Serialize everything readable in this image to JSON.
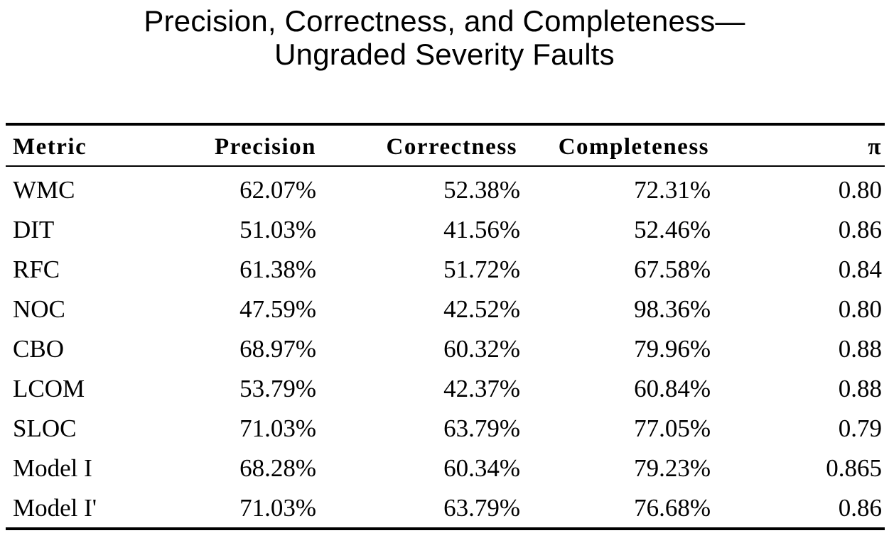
{
  "title": {
    "line1": "Precision, Correctness, and Completeness—",
    "line2": "Ungraded Severity Faults"
  },
  "table": {
    "headers": [
      "Metric",
      "Precision",
      "Correctness",
      "Completeness",
      "π"
    ],
    "rows": [
      [
        "WMC",
        "62.07%",
        "52.38%",
        "72.31%",
        "0.80"
      ],
      [
        "DIT",
        "51.03%",
        "41.56%",
        "52.46%",
        "0.86"
      ],
      [
        "RFC",
        "61.38%",
        "51.72%",
        "67.58%",
        "0.84"
      ],
      [
        "NOC",
        "47.59%",
        "42.52%",
        "98.36%",
        "0.80"
      ],
      [
        "CBO",
        "68.97%",
        "60.32%",
        "79.96%",
        "0.88"
      ],
      [
        "LCOM",
        "53.79%",
        "42.37%",
        "60.84%",
        "0.88"
      ],
      [
        "SLOC",
        "71.03%",
        "63.79%",
        "77.05%",
        "0.79"
      ],
      [
        "Model I",
        "68.28%",
        "60.34%",
        "79.23%",
        "0.865"
      ],
      [
        "Model I'",
        "71.03%",
        "63.79%",
        "76.68%",
        "0.86"
      ]
    ]
  }
}
